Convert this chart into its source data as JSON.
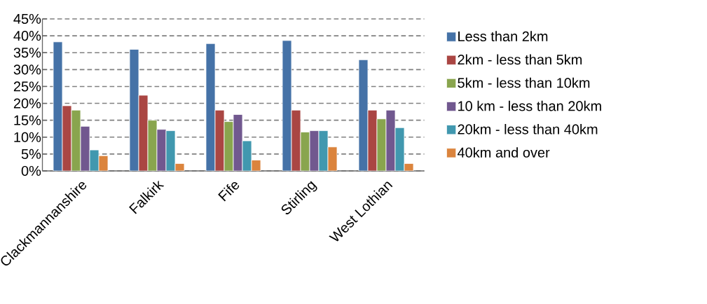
{
  "chart_data": {
    "type": "bar",
    "categories": [
      "Clackmannanshire",
      "Falkirk",
      "Fife",
      "Stirling",
      "West Lothian"
    ],
    "series": [
      {
        "name": "Less than 2km",
        "color": "#4572a7",
        "values": [
          38.2,
          36.0,
          37.7,
          38.6,
          32.9
        ]
      },
      {
        "name": "2km - less than 5km",
        "color": "#aa4643",
        "values": [
          19.3,
          22.4,
          18.0,
          18.0,
          18.0
        ]
      },
      {
        "name": "5km - less than 10km",
        "color": "#89a54e",
        "values": [
          18.0,
          15.0,
          14.6,
          11.5,
          15.4
        ]
      },
      {
        "name": "10 km - less than 20km",
        "color": "#71588f",
        "values": [
          13.2,
          12.3,
          16.7,
          11.9,
          18.0
        ]
      },
      {
        "name": "20km - less than 40km",
        "color": "#4198af",
        "values": [
          6.2,
          11.9,
          8.9,
          11.9,
          12.8
        ]
      },
      {
        "name": "40km and over",
        "color": "#db843d",
        "values": [
          4.5,
          2.2,
          3.2,
          7.1,
          2.2
        ]
      }
    ],
    "ylim": [
      0,
      45
    ],
    "yticks": [
      {
        "value": 0,
        "label": "0%"
      },
      {
        "value": 5,
        "label": "5%"
      },
      {
        "value": 10,
        "label": "10%"
      },
      {
        "value": 15,
        "label": "15%"
      },
      {
        "value": 20,
        "label": "20%"
      },
      {
        "value": 25,
        "label": "25%"
      },
      {
        "value": 30,
        "label": "30%"
      },
      {
        "value": 35,
        "label": "35%"
      },
      {
        "value": 40,
        "label": "40%"
      },
      {
        "value": 45,
        "label": "45%"
      }
    ],
    "grid": "y",
    "legend": "right"
  }
}
